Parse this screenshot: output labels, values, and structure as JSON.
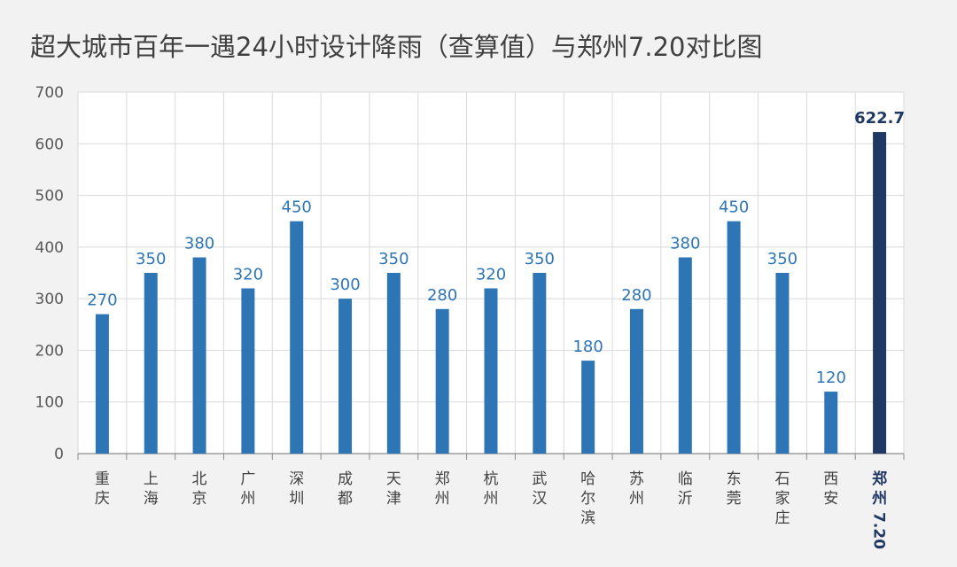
{
  "chart_data": {
    "type": "bar",
    "title": "超大城市百年一遇24小时设计降雨（查算值）与郑州7.20对比图",
    "xlabel": "",
    "ylabel": "",
    "ylim": [
      0,
      700
    ],
    "yticks": [
      0,
      100,
      200,
      300,
      400,
      500,
      600,
      700
    ],
    "grid": true,
    "legend": "none",
    "categories": [
      "重庆",
      "上海",
      "北京",
      "广州",
      "深圳",
      "成都",
      "天津",
      "郑州",
      "杭州",
      "武汉",
      "哈尔滨",
      "苏州",
      "临沂",
      "东莞",
      "石家庄",
      "西安",
      "郑州 7.20"
    ],
    "values": [
      270,
      350,
      380,
      320,
      450,
      300,
      350,
      280,
      320,
      350,
      180,
      280,
      380,
      450,
      350,
      120,
      622.7
    ],
    "data_labels": [
      "270",
      "350",
      "380",
      "320",
      "450",
      "300",
      "350",
      "280",
      "320",
      "350",
      "180",
      "280",
      "380",
      "450",
      "350",
      "120",
      "622.7"
    ],
    "highlight_index": 16,
    "colors": {
      "bar": "#2e75b6",
      "highlight_bar": "#1f3864",
      "label": "#2e75b6",
      "highlight_label": "#1f3864"
    }
  }
}
